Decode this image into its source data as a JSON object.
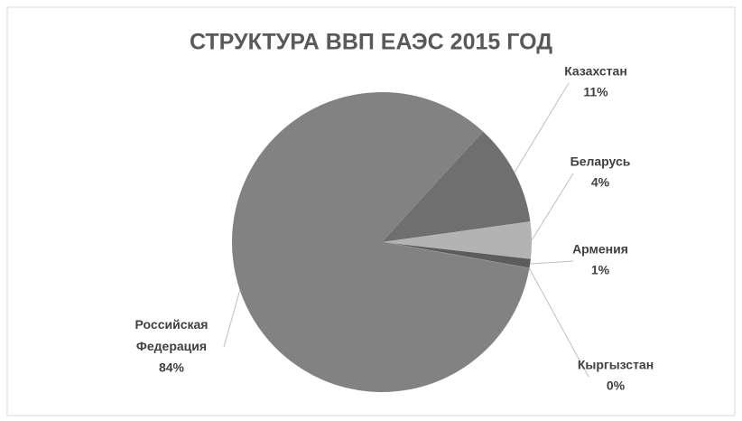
{
  "chart_data": {
    "type": "pie",
    "title": "СТРУКТУРА ВВП ЕАЭС 2015 ГОД",
    "categories": [
      "Казахстан",
      "Беларусь",
      "Армения",
      "Кыргызстан",
      "Российская Федерация"
    ],
    "values": [
      11,
      4,
      1,
      0,
      84
    ],
    "value_labels": [
      "11%",
      "4%",
      "1%",
      "0%",
      "84%"
    ],
    "colors": [
      "#6f6f6f",
      "#b3b3b3",
      "#5c5c5c",
      "#9a9a9a",
      "#828282"
    ]
  }
}
